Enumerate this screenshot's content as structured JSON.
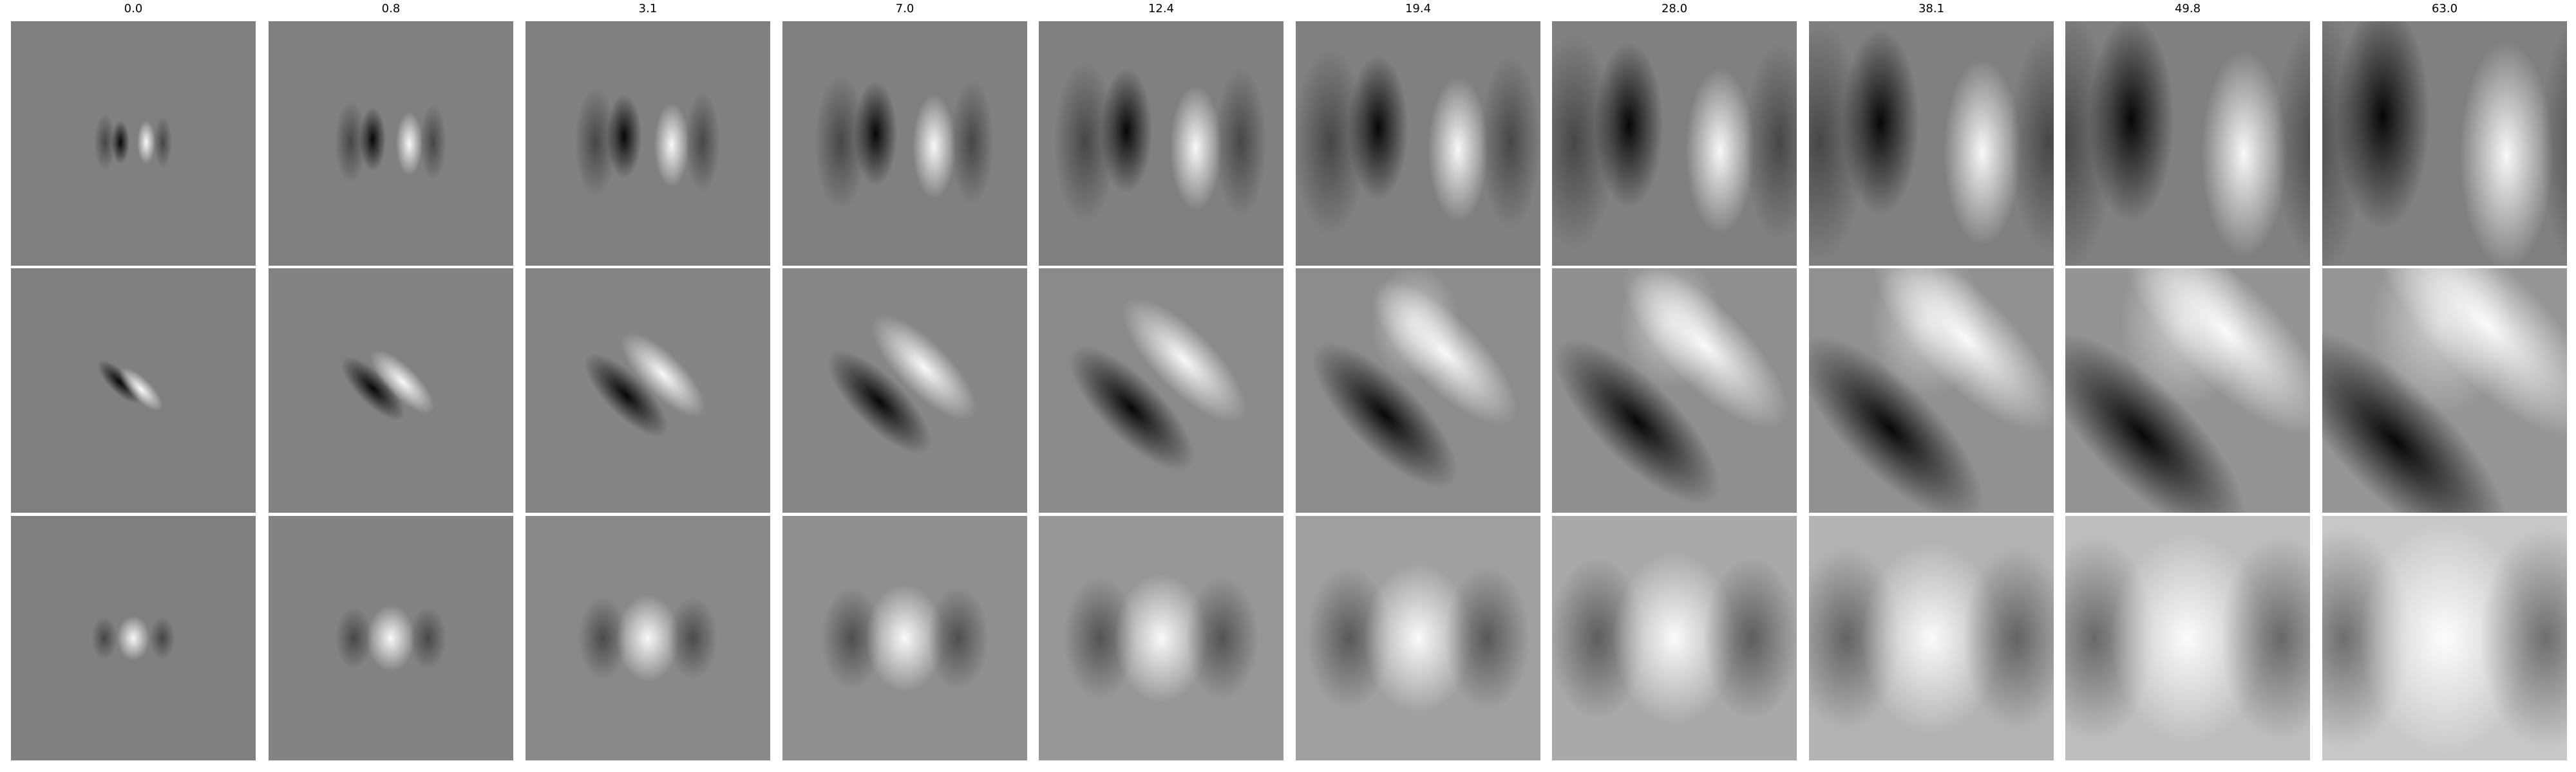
{
  "column_labels": [
    "0.0",
    "0.8",
    "3.1",
    "7.0",
    "12.4",
    "19.4",
    "28.0",
    "38.1",
    "49.8",
    "63.0"
  ],
  "rows": 3,
  "colors": {
    "background": "#ffffff",
    "neutral_gray": "#808080",
    "dark": "#000000",
    "light": "#ffffff"
  }
}
